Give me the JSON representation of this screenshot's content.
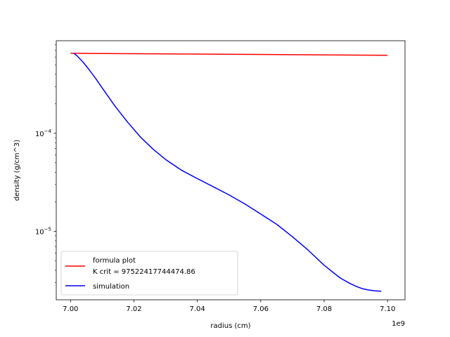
{
  "chart_data": {
    "type": "line",
    "title": "",
    "xlabel": "radius (cm)",
    "ylabel": "density (g/cm^3)",
    "x_offset_label": "1e9",
    "x_scale": "linear",
    "y_scale": "log",
    "xlim": [
      6995500000.0,
      7105500000.0
    ],
    "ylim": [
      2e-06,
      0.00088
    ],
    "x_ticks": [
      {
        "value": 7000000000.0,
        "label": "7.00"
      },
      {
        "value": 7020000000.0,
        "label": "7.02"
      },
      {
        "value": 7040000000.0,
        "label": "7.04"
      },
      {
        "value": 7060000000.0,
        "label": "7.06"
      },
      {
        "value": 7080000000.0,
        "label": "7.08"
      },
      {
        "value": 7100000000.0,
        "label": "7.10"
      }
    ],
    "y_ticks": [
      {
        "value": 1e-05,
        "base": "10",
        "exp": "−5"
      },
      {
        "value": 0.0001,
        "base": "10",
        "exp": "−4"
      }
    ],
    "grid": false,
    "legend": {
      "placement": "lower-left",
      "entries": [
        {
          "line1": "formula plot",
          "line2": "K crit = 97522417744474.86",
          "color": "#ff0000"
        },
        {
          "line1": "simulation",
          "line2": "",
          "color": "#0000ff"
        }
      ]
    },
    "series": [
      {
        "color": "#ff0000",
        "x": [
          7000000000.0,
          7100000000.0
        ],
        "y": [
          0.000655,
          0.000625
        ]
      },
      {
        "color": "#0000ff",
        "x": [
          7001000000.0,
          7002000000.0,
          7004000000.0,
          7006000000.0,
          7008000000.0,
          7010000000.0,
          7014000000.0,
          7018000000.0,
          7022000000.0,
          7026000000.0,
          7030000000.0,
          7035000000.0,
          7040000000.0,
          7045000000.0,
          7050000000.0,
          7055000000.0,
          7060000000.0,
          7065000000.0,
          7070000000.0,
          7075000000.0,
          7080000000.0,
          7085000000.0,
          7088000000.0,
          7090000000.0,
          7092000000.0,
          7094000000.0,
          7096000000.0,
          7098000000.0
        ],
        "y": [
          0.000655,
          0.00062,
          0.00053,
          0.00044,
          0.00036,
          0.00029,
          0.00019,
          0.00013,
          9.2e-05,
          6.9e-05,
          5.4e-05,
          4.2e-05,
          3.45e-05,
          2.85e-05,
          2.35e-05,
          1.9e-05,
          1.5e-05,
          1.18e-05,
          8.8e-06,
          6.4e-06,
          4.5e-06,
          3.35e-06,
          2.95e-06,
          2.75e-06,
          2.6e-06,
          2.52e-06,
          2.47e-06,
          2.45e-06
        ]
      }
    ]
  }
}
